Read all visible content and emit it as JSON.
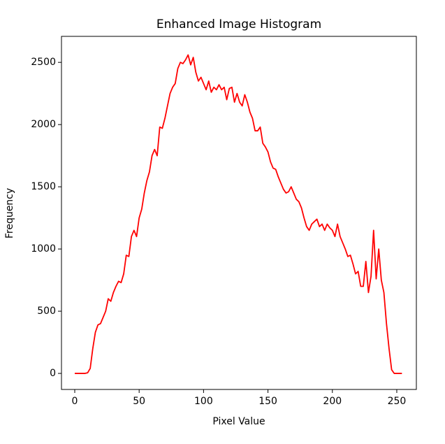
{
  "chart_data": {
    "type": "line",
    "title": "Enhanced Image Histogram",
    "x_label": "Pixel Value",
    "y_label": "Frequency",
    "color": "#ff0000",
    "x": [
      0,
      2,
      4,
      6,
      8,
      10,
      12,
      14,
      16,
      18,
      20,
      22,
      24,
      26,
      28,
      30,
      32,
      34,
      36,
      38,
      40,
      42,
      44,
      46,
      48,
      50,
      52,
      54,
      56,
      58,
      60,
      62,
      64,
      66,
      68,
      70,
      72,
      74,
      76,
      78,
      80,
      82,
      84,
      86,
      88,
      90,
      92,
      94,
      96,
      98,
      100,
      102,
      104,
      106,
      108,
      110,
      112,
      114,
      116,
      118,
      120,
      122,
      124,
      126,
      128,
      130,
      132,
      134,
      136,
      138,
      140,
      142,
      144,
      146,
      148,
      150,
      152,
      154,
      156,
      158,
      160,
      162,
      164,
      166,
      168,
      170,
      172,
      174,
      176,
      178,
      180,
      182,
      184,
      186,
      188,
      190,
      192,
      194,
      196,
      198,
      200,
      202,
      204,
      206,
      208,
      210,
      212,
      214,
      216,
      218,
      220,
      222,
      224,
      226,
      228,
      230,
      232,
      234,
      236,
      238,
      240,
      242,
      244,
      246,
      248,
      250,
      252,
      254
    ],
    "values": [
      0,
      0,
      0,
      0,
      0,
      5,
      40,
      200,
      330,
      390,
      400,
      450,
      500,
      600,
      580,
      650,
      700,
      740,
      730,
      800,
      950,
      940,
      1100,
      1150,
      1100,
      1250,
      1320,
      1450,
      1550,
      1620,
      1750,
      1800,
      1750,
      1980,
      1970,
      2050,
      2150,
      2250,
      2300,
      2330,
      2450,
      2500,
      2490,
      2520,
      2560,
      2480,
      2540,
      2420,
      2350,
      2380,
      2330,
      2280,
      2350,
      2260,
      2300,
      2280,
      2320,
      2280,
      2300,
      2200,
      2290,
      2300,
      2180,
      2250,
      2180,
      2150,
      2240,
      2180,
      2100,
      2050,
      1950,
      1950,
      1980,
      1850,
      1820,
      1780,
      1700,
      1650,
      1640,
      1580,
      1530,
      1480,
      1450,
      1460,
      1500,
      1450,
      1400,
      1380,
      1330,
      1250,
      1180,
      1150,
      1200,
      1220,
      1240,
      1180,
      1200,
      1150,
      1200,
      1170,
      1150,
      1100,
      1200,
      1100,
      1050,
      1000,
      940,
      950,
      880,
      800,
      820,
      700,
      700,
      900,
      650,
      780,
      1150,
      760,
      1000,
      750,
      650,
      400,
      200,
      30,
      0,
      0,
      0,
      0
    ],
    "xlim": [
      -10.3,
      265.2
    ],
    "ylim": [
      -129,
      2709
    ],
    "xticks": [
      0,
      50,
      100,
      150,
      200,
      250
    ],
    "yticks": [
      0,
      500,
      1000,
      1500,
      2000,
      2500
    ]
  }
}
